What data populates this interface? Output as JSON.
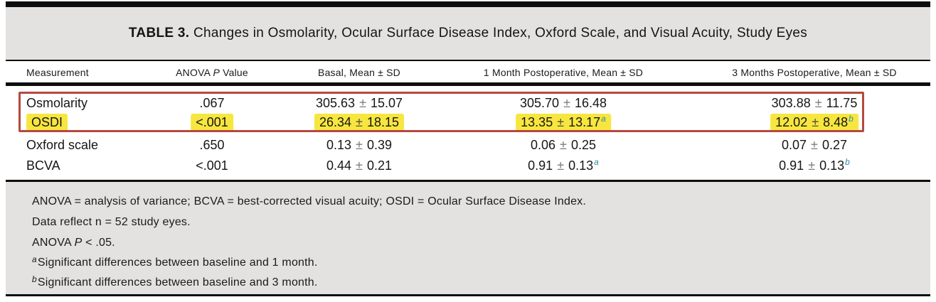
{
  "title": {
    "label": "TABLE 3.",
    "text": "Changes in Osmolarity, Ocular Surface Disease Index, Oxford Scale, and Visual Acuity, Study Eyes"
  },
  "table": {
    "pm": "±",
    "headers": {
      "col1": "Measurement",
      "col2_pre": "ANOVA",
      "col2_italic": "P",
      "col2_post": "Value",
      "col3": "Basal, Mean ± SD",
      "col4": "1 Month Postoperative, Mean ± SD",
      "col5": "3 Months Postoperative, Mean ± SD"
    },
    "rows": [
      {
        "label": "Osmolarity",
        "anova": ".067",
        "basal": {
          "mean": "305.63",
          "sd": "15.07"
        },
        "m1": {
          "mean": "305.70",
          "sd": "16.48"
        },
        "m3": {
          "mean": "303.88",
          "sd": "11.75"
        }
      },
      {
        "label": "OSDI",
        "anova": "<.001",
        "basal": {
          "mean": "26.34",
          "sd": "18.15"
        },
        "m1": {
          "mean": "13.35",
          "sd": "13.17",
          "sup": "a"
        },
        "m3": {
          "mean": "12.02",
          "sd": "8.48",
          "sup": "b"
        }
      },
      {
        "label": "Oxford scale",
        "anova": ".650",
        "basal": {
          "mean": "0.13",
          "sd": "0.39"
        },
        "m1": {
          "mean": "0.06",
          "sd": "0.25"
        },
        "m3": {
          "mean": "0.07",
          "sd": "0.27"
        }
      },
      {
        "label": "BCVA",
        "anova": "<.001",
        "basal": {
          "mean": "0.44",
          "sd": "0.21"
        },
        "m1": {
          "mean": "0.91",
          "sd": "0.13",
          "sup": "a"
        },
        "m3": {
          "mean": "0.91",
          "sd": "0.13",
          "sup": "b"
        }
      }
    ]
  },
  "footnotes": {
    "line1": "ANOVA = analysis of variance; BCVA = best-corrected visual acuity; OSDI = Ocular Surface Disease Index.",
    "line2": "Data reflect n = 52 study eyes.",
    "line3_pre": "ANOVA",
    "line3_italic": "P",
    "line3_post": "< .05.",
    "note_a_marker": "a",
    "note_a_text": "Significant differences between baseline and 1 month.",
    "note_b_marker": "b",
    "note_b_text": "Significant differences between baseline and 3 month."
  },
  "annotations": {
    "highlight_color": "#f7e63f",
    "box_color": "#b5493f",
    "superscript_color": "#2e8ca8"
  }
}
